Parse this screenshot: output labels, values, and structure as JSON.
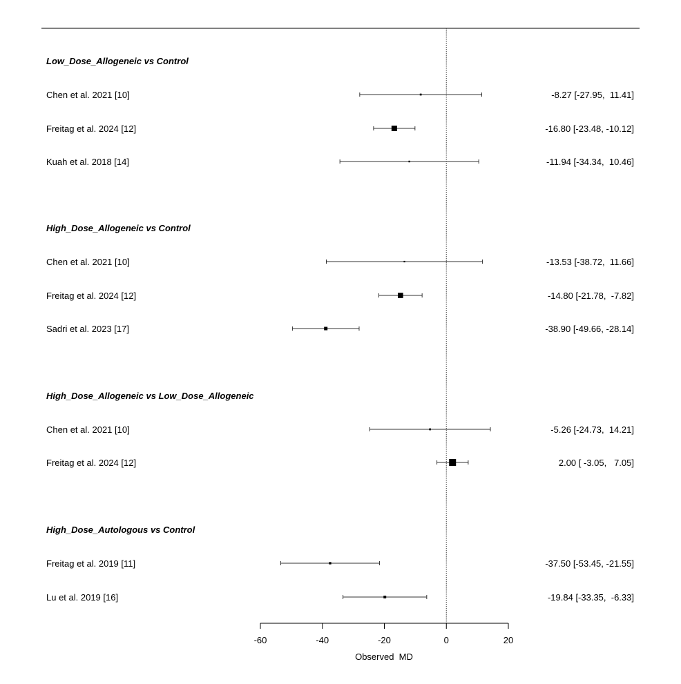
{
  "chart_data": {
    "type": "forest",
    "xlabel": "Observed  MD",
    "xlim": [
      -60,
      20
    ],
    "xticks": [
      -60,
      -40,
      -20,
      0,
      20
    ],
    "reference_line": 0,
    "groups": [
      {
        "title": "Low_Dose_Allogeneic vs Control",
        "studies": [
          {
            "label": "Chen et al. 2021 [10]",
            "md": -8.27,
            "lo": -27.95,
            "hi": 11.41,
            "text": "-8.27 [-27.95,  11.41]"
          },
          {
            "label": "Freitag et al. 2024 [12]",
            "md": -16.8,
            "lo": -23.48,
            "hi": -10.12,
            "text": "-16.80 [-23.48, -10.12]"
          },
          {
            "label": "Kuah et al. 2018 [14]",
            "md": -11.94,
            "lo": -34.34,
            "hi": 10.46,
            "text": "-11.94 [-34.34,  10.46]"
          }
        ]
      },
      {
        "title": "High_Dose_Allogeneic vs Control",
        "studies": [
          {
            "label": "Chen et al. 2021 [10]",
            "md": -13.53,
            "lo": -38.72,
            "hi": 11.66,
            "text": "-13.53 [-38.72,  11.66]"
          },
          {
            "label": "Freitag et al. 2024 [12]",
            "md": -14.8,
            "lo": -21.78,
            "hi": -7.82,
            "text": "-14.80 [-21.78,  -7.82]"
          },
          {
            "label": "Sadri et al. 2023 [17]",
            "md": -38.9,
            "lo": -49.66,
            "hi": -28.14,
            "text": "-38.90 [-49.66, -28.14]"
          }
        ]
      },
      {
        "title": "High_Dose_Allogeneic vs Low_Dose_Allogeneic",
        "studies": [
          {
            "label": "Chen et al. 2021 [10]",
            "md": -5.26,
            "lo": -24.73,
            "hi": 14.21,
            "text": "-5.26 [-24.73,  14.21]"
          },
          {
            "label": "Freitag et al. 2024 [12]",
            "md": 2.0,
            "lo": -3.05,
            "hi": 7.05,
            "text": "2.00 [ -3.05,   7.05]"
          }
        ]
      },
      {
        "title": "High_Dose_Autologous vs Control",
        "studies": [
          {
            "label": "Freitag et al. 2019 [11]",
            "md": -37.5,
            "lo": -53.45,
            "hi": -21.55,
            "text": "-37.50 [-53.45, -21.55]"
          },
          {
            "label": "Lu et al. 2019 [16]",
            "md": -19.84,
            "lo": -33.35,
            "hi": -6.33,
            "text": "-19.84 [-33.35,  -6.33]"
          }
        ]
      }
    ]
  }
}
